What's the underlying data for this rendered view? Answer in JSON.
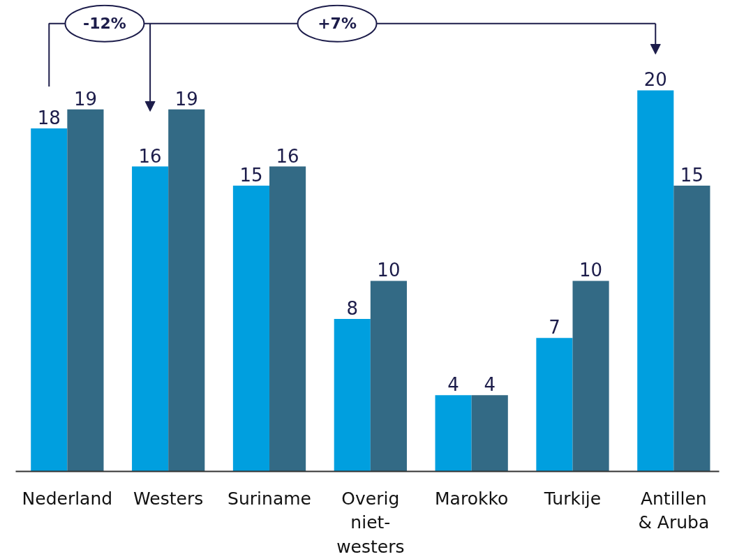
{
  "chart_data": {
    "type": "bar",
    "categories": [
      "Nederland",
      "Westers",
      "Suriname",
      "Overig niet-westers",
      "Marokko",
      "Turkije",
      "Antillen & Aruba"
    ],
    "series": [
      {
        "color": "#009fdf",
        "values": [
          18,
          16,
          15,
          8,
          4,
          7,
          20
        ]
      },
      {
        "color": "#336a85",
        "values": [
          19,
          19,
          16,
          10,
          4,
          10,
          15
        ]
      }
    ],
    "tick_labels": "x",
    "grid": false,
    "data_labels": true,
    "annotations": [
      "-12%",
      "+7%"
    ]
  }
}
